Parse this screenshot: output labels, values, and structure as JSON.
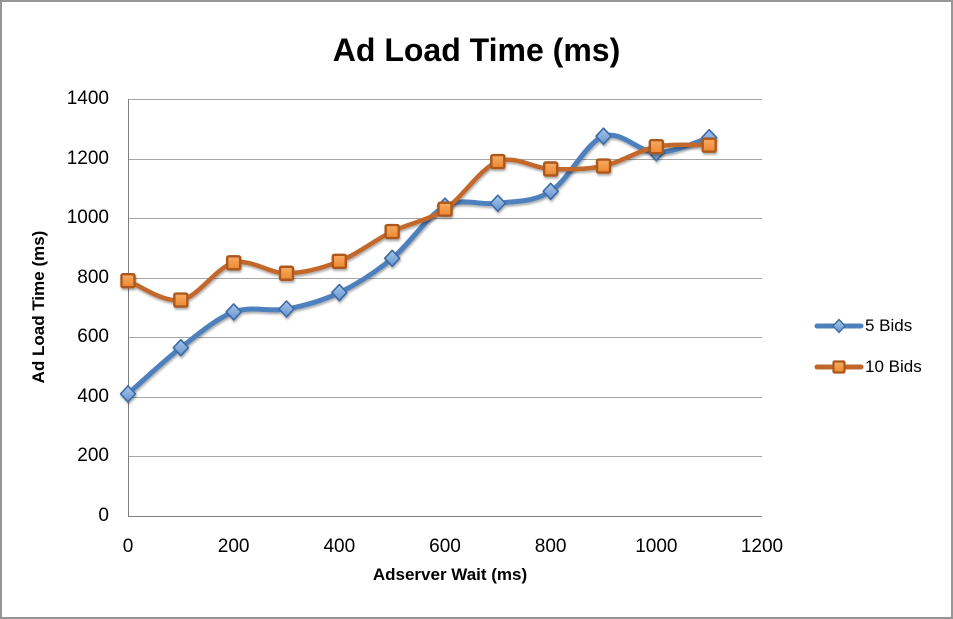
{
  "window": {
    "background": "#ffffff",
    "border_color": "#969696"
  },
  "chart_data": {
    "type": "line",
    "title": "Ad Load Time (ms)",
    "xlabel": "Adserver Wait (ms)",
    "ylabel": "Ad Load Time (ms)",
    "x": [
      0,
      100,
      200,
      300,
      400,
      500,
      600,
      700,
      800,
      900,
      1000,
      1100
    ],
    "series": [
      {
        "name": "5 Bids",
        "marker": "diamond",
        "line_color": "#4E80BC",
        "marker_gradient_top": "#A9C7EA",
        "marker_gradient_bottom": "#6594CE",
        "marker_stroke": "#3A6BA4",
        "values": [
          410,
          565,
          685,
          695,
          750,
          865,
          1040,
          1050,
          1090,
          1275,
          1220,
          1270
        ]
      },
      {
        "name": "10 Bids",
        "marker": "square",
        "line_color": "#C2672B",
        "marker_gradient_top": "#F8AC64",
        "marker_gradient_bottom": "#EC8830",
        "marker_stroke": "#AC581E",
        "values": [
          790,
          725,
          850,
          815,
          855,
          955,
          1030,
          1190,
          1165,
          1175,
          1240,
          1245
        ]
      }
    ],
    "xlim": [
      0,
      1200
    ],
    "ylim": [
      0,
      1400
    ],
    "xticks": [
      0,
      200,
      400,
      600,
      800,
      1000,
      1200
    ],
    "yticks": [
      0,
      200,
      400,
      600,
      800,
      1000,
      1200,
      1400
    ],
    "grid": "horizontal-only",
    "gridline_color": "#A6A6A6",
    "axis_line_color": "#7F7F7F",
    "smoothed_lines": true,
    "legend_position": "right"
  }
}
